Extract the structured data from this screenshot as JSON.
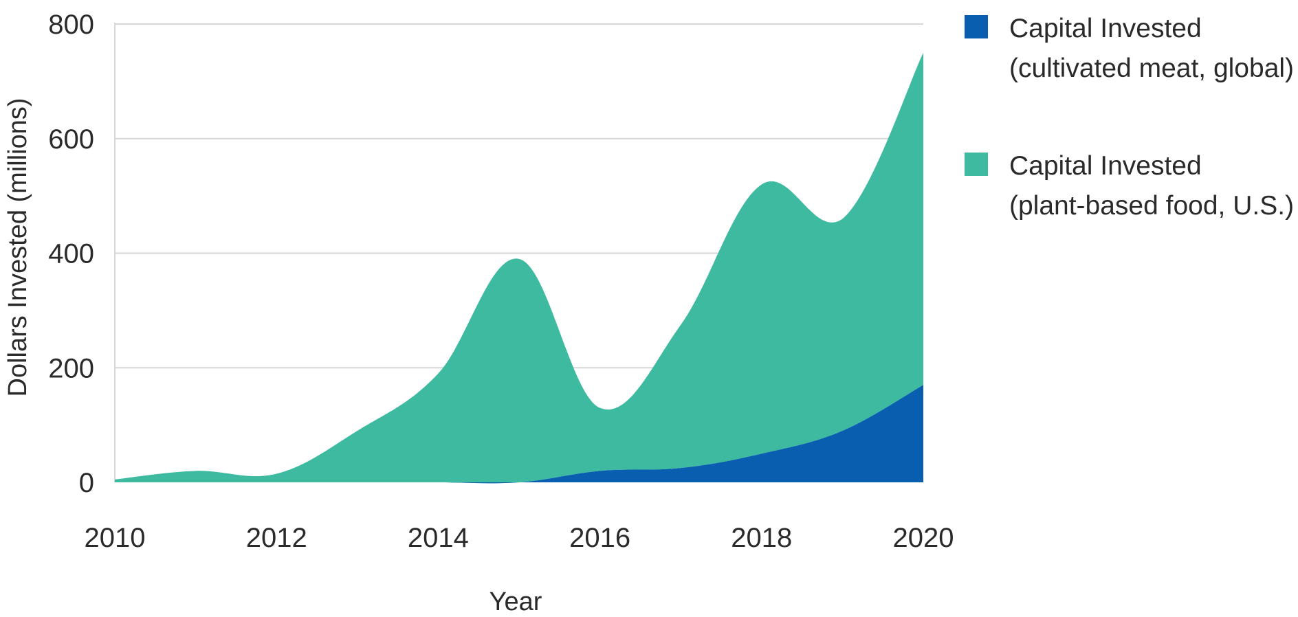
{
  "chart_data": {
    "type": "area",
    "stacked": true,
    "title": "",
    "xlabel": "Year",
    "ylabel": "Dollars Invested (millions)",
    "x_ticks": [
      "2010",
      "2012",
      "2014",
      "2016",
      "2018",
      "2020"
    ],
    "y_ticks": [
      "0",
      "200",
      "400",
      "600",
      "800"
    ],
    "xlim": [
      2010,
      2020
    ],
    "ylim": [
      0,
      800
    ],
    "grid": "horizontal",
    "legend_position": "right",
    "x": [
      2010,
      2011,
      2012,
      2013,
      2014,
      2015,
      2016,
      2017,
      2018,
      2019,
      2020
    ],
    "series": [
      {
        "name": "Capital Invested\n(cultivated meat, global)",
        "legend_lines": [
          "Capital Invested",
          "(cultivated meat, global)"
        ],
        "color": "#0a5eb0",
        "values": [
          0,
          0,
          0,
          0,
          0,
          0,
          20,
          25,
          50,
          90,
          170
        ]
      },
      {
        "name": "Capital Invested\n(plant-based food, U.S.)",
        "legend_lines": [
          "Capital Invested",
          "(plant-based food, U.S.)"
        ],
        "color": "#3dba9f",
        "values": [
          5,
          20,
          15,
          90,
          190,
          390,
          110,
          250,
          470,
          370,
          580
        ]
      }
    ]
  }
}
